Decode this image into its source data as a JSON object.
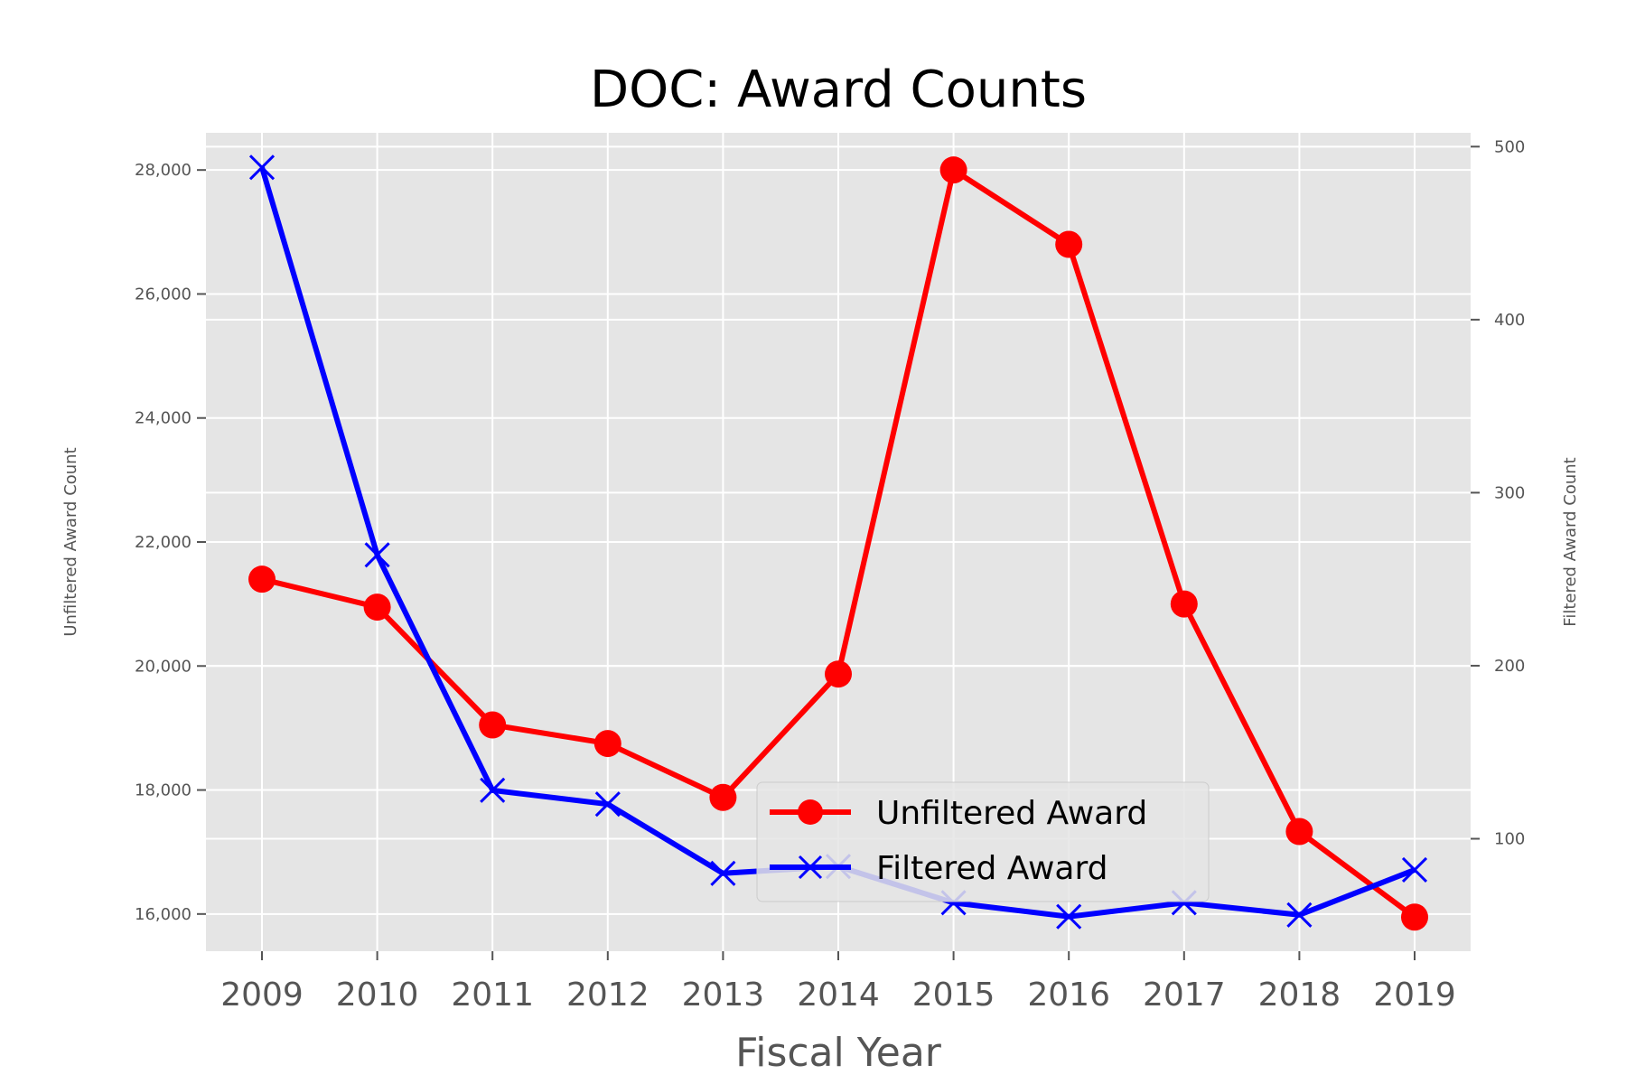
{
  "chart_data": {
    "type": "line",
    "title": "DOC: Award Counts",
    "xlabel": "Fiscal Year",
    "ylabel": "Unfiltered Award Count",
    "y2label": "Filtered Award Count",
    "x": [
      2009,
      2010,
      2011,
      2012,
      2013,
      2014,
      2015,
      2016,
      2017,
      2018,
      2019
    ],
    "ylim": [
      15400,
      28600
    ],
    "y2lim": [
      35,
      508
    ],
    "yticks": [
      "16,000",
      "18,000",
      "20,000",
      "22,000",
      "24,000",
      "26,000",
      "28,000"
    ],
    "y2ticks": [
      "100",
      "200",
      "300",
      "400",
      "500"
    ],
    "grid": true,
    "legend": "lower-center",
    "series": [
      {
        "name": "Unfiltered Award",
        "axis": "left",
        "color": "#ff0000",
        "marker": "circle",
        "values": [
          21400,
          20950,
          19050,
          18750,
          17880,
          19870,
          28000,
          26800,
          21000,
          17330,
          15950
        ]
      },
      {
        "name": "Filtered Award",
        "axis": "right",
        "color": "#0000ff",
        "marker": "x",
        "values": [
          488,
          264,
          128,
          120,
          80,
          84,
          63,
          55,
          63,
          56,
          82
        ]
      }
    ]
  }
}
